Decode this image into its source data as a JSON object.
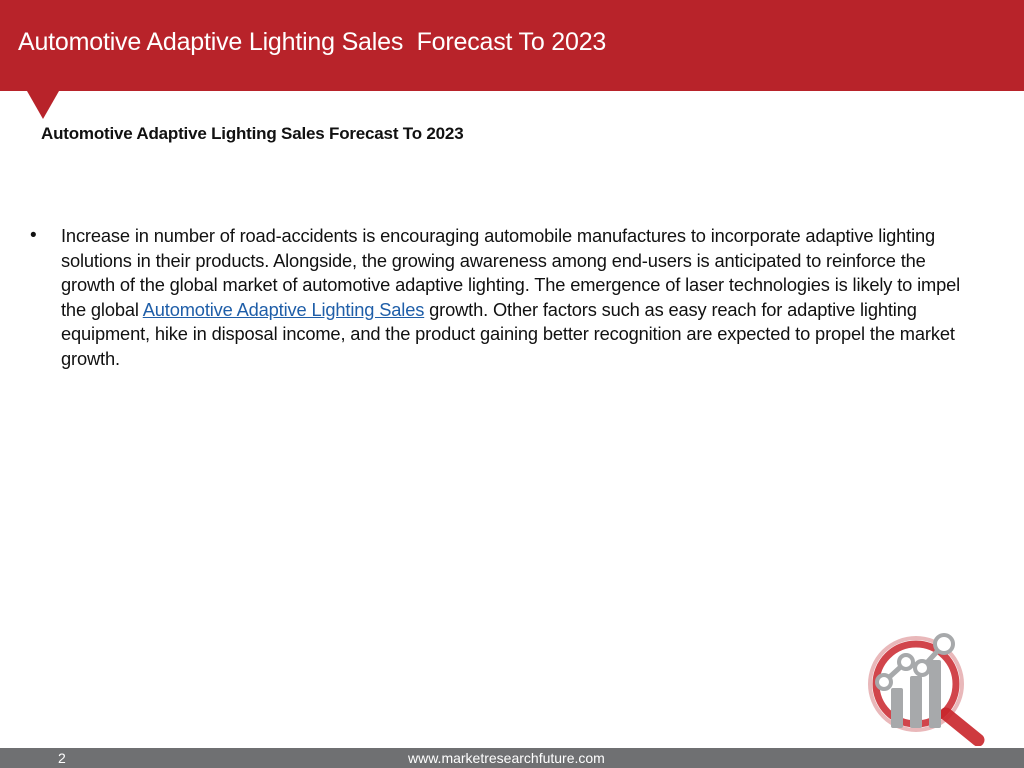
{
  "header": {
    "title": "Automotive Adaptive Lighting Sales  Forecast To 2023",
    "color": "#b8232a"
  },
  "content": {
    "subtitle": "Automotive Adaptive Lighting Sales Forecast To 2023",
    "bullet_symbol": "•",
    "paragraph_before_link": "Increase in number of road-accidents is encouraging automobile manufactures to incorporate adaptive lighting solutions in their products. Alongside, the growing awareness among end-users is anticipated to reinforce the growth of the global market of automotive adaptive lighting. The emergence of laser technologies is likely to impel the global ",
    "link_text": "Automotive Adaptive Lighting Sales",
    "paragraph_after_link": " growth. Other factors such as easy reach for adaptive lighting equipment, hike in disposal income, and the product gaining better recognition are expected to propel the market growth."
  },
  "logo": {
    "icon": "magnifier-chart-logo",
    "primary_color": "#c9252b",
    "secondary_color": "#a7a9ab"
  },
  "footer": {
    "page_number": "2",
    "url": "www.marketresearchfuture.com",
    "color": "#6f7072"
  }
}
